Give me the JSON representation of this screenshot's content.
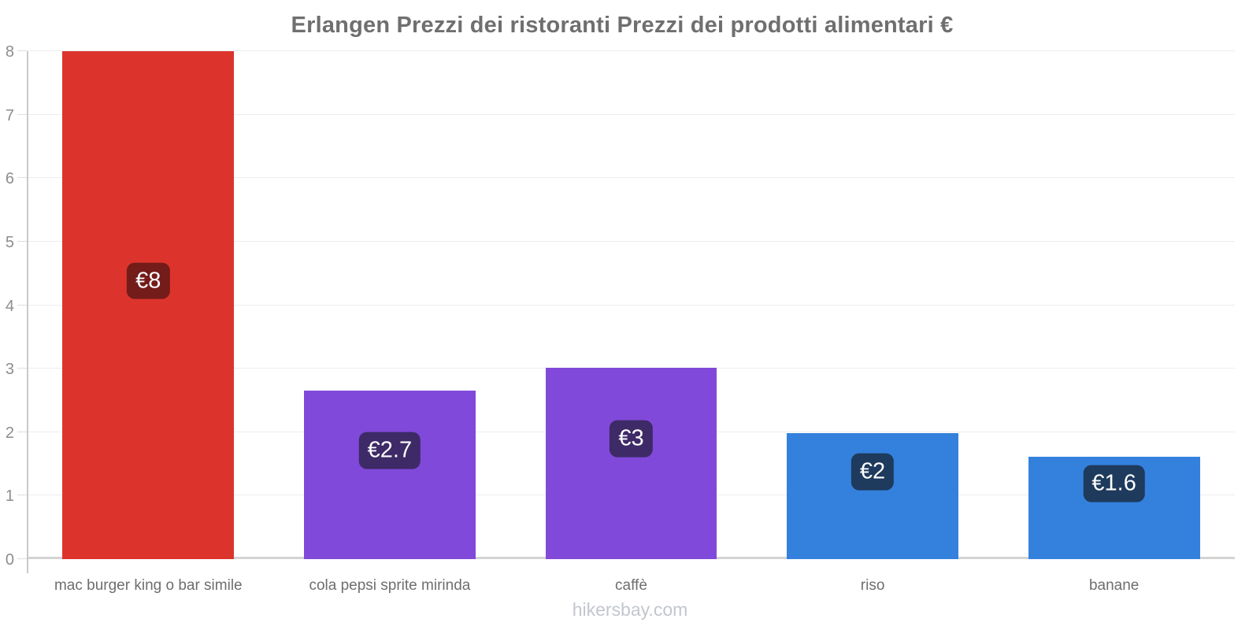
{
  "title": "Erlangen Prezzi dei ristoranti Prezzi dei prodotti alimentari €",
  "watermark": "hikersbay.com",
  "colors": {
    "title_text": "#6f6f6f",
    "axis_line": "#c9c9c9",
    "gridline": "#ededed",
    "baseline": "#d4d4d4",
    "tick": "#dedede",
    "y_label_text": "#8d8d8d",
    "category_text": "#6e6e6e",
    "badge_text": "#ffffff",
    "watermark_text": "#c2c6cd"
  },
  "chart_data": {
    "type": "bar",
    "title": "Erlangen Prezzi dei ristoranti Prezzi dei prodotti alimentari €",
    "categories": [
      "mac burger king o bar simile",
      "cola pepsi sprite mirinda",
      "caffè",
      "riso",
      "banane"
    ],
    "values": [
      8,
      2.65,
      3.02,
      1.98,
      1.61
    ],
    "value_labels": [
      "€8",
      "€2.7",
      "€3",
      "€2",
      "€1.6"
    ],
    "bar_colors": [
      "#dc342d",
      "#8149da",
      "#8149da",
      "#3481dd",
      "#3481dd"
    ],
    "badge_colors": [
      "#731c1a",
      "#3d2a66",
      "#3d2a66",
      "#1e3a5c",
      "#1e3a5c"
    ],
    "currency": "€",
    "xlabel": "",
    "ylabel": "",
    "ylim": [
      0,
      8
    ],
    "yticks": [
      0,
      1,
      2,
      3,
      4,
      5,
      6,
      7,
      8
    ],
    "grid": true,
    "legend": "none"
  }
}
